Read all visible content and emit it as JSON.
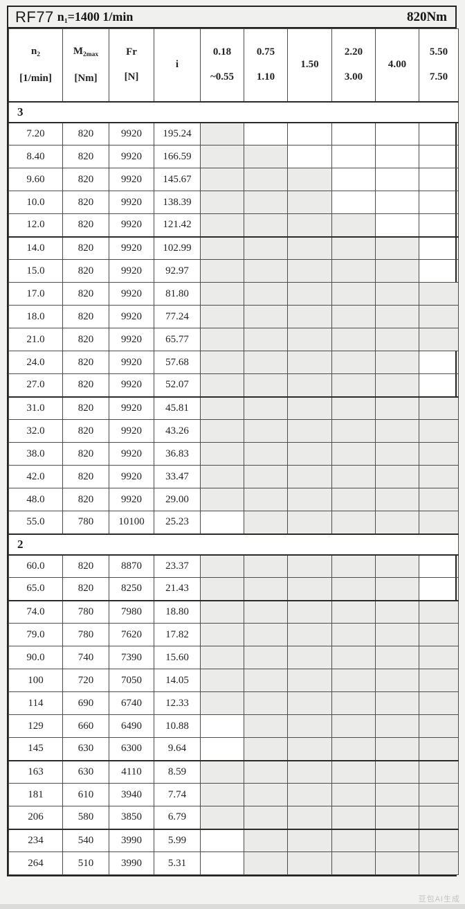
{
  "title": {
    "model": "RF77",
    "speed_pre": "n",
    "speed_sub": "1",
    "speed_post": "=1400 1/min",
    "torque": "820Nm"
  },
  "header": {
    "info_cols": [
      {
        "name": "n2",
        "pre": "n",
        "sub": "2",
        "line2": "[1/min]"
      },
      {
        "name": "m2max",
        "pre": "M",
        "sub": "2max",
        "line2": "[Nm]"
      },
      {
        "name": "fr",
        "pre": "Fr",
        "sub": "",
        "line2": "[N]"
      },
      {
        "name": "ratio",
        "pre": "i",
        "sub": "",
        "line2": ""
      }
    ],
    "power_cols": [
      {
        "line1": "0.18",
        "line2": "~0.55"
      },
      {
        "line1": "0.75",
        "line2": "1.10"
      },
      {
        "line1": "1.50",
        "line2": ""
      },
      {
        "line1": "2.20",
        "line2": "3.00"
      },
      {
        "line1": "4.00",
        "line2": ""
      },
      {
        "line1": "5.50",
        "line2": "7.50"
      }
    ]
  },
  "groups": [
    {
      "label": "3",
      "rows": [
        {
          "n2": "7.20",
          "m2max": "820",
          "fr": "9920",
          "i": "195.24",
          "shade": [
            1,
            0,
            0,
            0,
            0,
            0
          ]
        },
        {
          "n2": "8.40",
          "m2max": "820",
          "fr": "9920",
          "i": "166.59",
          "shade": [
            1,
            1,
            0,
            0,
            0,
            0
          ]
        },
        {
          "n2": "9.60",
          "m2max": "820",
          "fr": "9920",
          "i": "145.67",
          "shade": [
            1,
            1,
            1,
            0,
            0,
            0
          ]
        },
        {
          "n2": "10.0",
          "m2max": "820",
          "fr": "9920",
          "i": "138.39",
          "shade": [
            1,
            1,
            1,
            0,
            0,
            0
          ]
        },
        {
          "n2": "12.0",
          "m2max": "820",
          "fr": "9920",
          "i": "121.42",
          "shade": [
            1,
            1,
            1,
            1,
            0,
            0
          ]
        },
        {
          "n2": "14.0",
          "m2max": "820",
          "fr": "9920",
          "i": "102.99",
          "shade": [
            1,
            1,
            1,
            1,
            1,
            0
          ],
          "thick_top": true
        },
        {
          "n2": "15.0",
          "m2max": "820",
          "fr": "9920",
          "i": "92.97",
          "shade": [
            1,
            1,
            1,
            1,
            1,
            0
          ]
        },
        {
          "n2": "17.0",
          "m2max": "820",
          "fr": "9920",
          "i": "81.80",
          "shade": [
            1,
            1,
            1,
            1,
            1,
            1
          ]
        },
        {
          "n2": "18.0",
          "m2max": "820",
          "fr": "9920",
          "i": "77.24",
          "shade": [
            1,
            1,
            1,
            1,
            1,
            1
          ]
        },
        {
          "n2": "21.0",
          "m2max": "820",
          "fr": "9920",
          "i": "65.77",
          "shade": [
            1,
            1,
            1,
            1,
            1,
            1
          ]
        },
        {
          "n2": "24.0",
          "m2max": "820",
          "fr": "9920",
          "i": "57.68",
          "shade": [
            1,
            1,
            1,
            1,
            1,
            0
          ]
        },
        {
          "n2": "27.0",
          "m2max": "820",
          "fr": "9920",
          "i": "52.07",
          "shade": [
            1,
            1,
            1,
            1,
            1,
            0
          ]
        },
        {
          "n2": "31.0",
          "m2max": "820",
          "fr": "9920",
          "i": "45.81",
          "shade": [
            1,
            1,
            1,
            1,
            1,
            1
          ],
          "thick_top": true
        },
        {
          "n2": "32.0",
          "m2max": "820",
          "fr": "9920",
          "i": "43.26",
          "shade": [
            1,
            1,
            1,
            1,
            1,
            1
          ]
        },
        {
          "n2": "38.0",
          "m2max": "820",
          "fr": "9920",
          "i": "36.83",
          "shade": [
            1,
            1,
            1,
            1,
            1,
            1
          ]
        },
        {
          "n2": "42.0",
          "m2max": "820",
          "fr": "9920",
          "i": "33.47",
          "shade": [
            1,
            1,
            1,
            1,
            1,
            1
          ]
        },
        {
          "n2": "48.0",
          "m2max": "820",
          "fr": "9920",
          "i": "29.00",
          "shade": [
            1,
            1,
            1,
            1,
            1,
            1
          ]
        },
        {
          "n2": "55.0",
          "m2max": "780",
          "fr": "10100",
          "i": "25.23",
          "shade": [
            0,
            1,
            1,
            1,
            1,
            1
          ]
        }
      ]
    },
    {
      "label": "2",
      "rows": [
        {
          "n2": "60.0",
          "m2max": "820",
          "fr": "8870",
          "i": "23.37",
          "shade": [
            1,
            1,
            1,
            1,
            1,
            0
          ]
        },
        {
          "n2": "65.0",
          "m2max": "820",
          "fr": "8250",
          "i": "21.43",
          "shade": [
            1,
            1,
            1,
            1,
            1,
            0
          ]
        },
        {
          "n2": "74.0",
          "m2max": "780",
          "fr": "7980",
          "i": "18.80",
          "shade": [
            1,
            1,
            1,
            1,
            1,
            1
          ],
          "thick_top": true
        },
        {
          "n2": "79.0",
          "m2max": "780",
          "fr": "7620",
          "i": "17.82",
          "shade": [
            1,
            1,
            1,
            1,
            1,
            1
          ]
        },
        {
          "n2": "90.0",
          "m2max": "740",
          "fr": "7390",
          "i": "15.60",
          "shade": [
            1,
            1,
            1,
            1,
            1,
            1
          ]
        },
        {
          "n2": "100",
          "m2max": "720",
          "fr": "7050",
          "i": "14.05",
          "shade": [
            1,
            1,
            1,
            1,
            1,
            1
          ]
        },
        {
          "n2": "114",
          "m2max": "690",
          "fr": "6740",
          "i": "12.33",
          "shade": [
            1,
            1,
            1,
            1,
            1,
            1
          ]
        },
        {
          "n2": "129",
          "m2max": "660",
          "fr": "6490",
          "i": "10.88",
          "shade": [
            0,
            1,
            1,
            1,
            1,
            1
          ]
        },
        {
          "n2": "145",
          "m2max": "630",
          "fr": "6300",
          "i": "9.64",
          "shade": [
            0,
            1,
            1,
            1,
            1,
            1
          ]
        },
        {
          "n2": "163",
          "m2max": "630",
          "fr": "4110",
          "i": "8.59",
          "shade": [
            1,
            1,
            1,
            1,
            1,
            1
          ],
          "thick_top": true
        },
        {
          "n2": "181",
          "m2max": "610",
          "fr": "3940",
          "i": "7.74",
          "shade": [
            1,
            1,
            1,
            1,
            1,
            1
          ]
        },
        {
          "n2": "206",
          "m2max": "580",
          "fr": "3850",
          "i": "6.79",
          "shade": [
            1,
            1,
            1,
            1,
            1,
            1
          ]
        },
        {
          "n2": "234",
          "m2max": "540",
          "fr": "3990",
          "i": "5.99",
          "shade": [
            0,
            1,
            1,
            1,
            1,
            1
          ],
          "thick_top": true
        },
        {
          "n2": "264",
          "m2max": "510",
          "fr": "3990",
          "i": "5.31",
          "shade": [
            0,
            1,
            1,
            1,
            1,
            1
          ]
        }
      ]
    }
  ],
  "watermark": "豆包AI生成"
}
